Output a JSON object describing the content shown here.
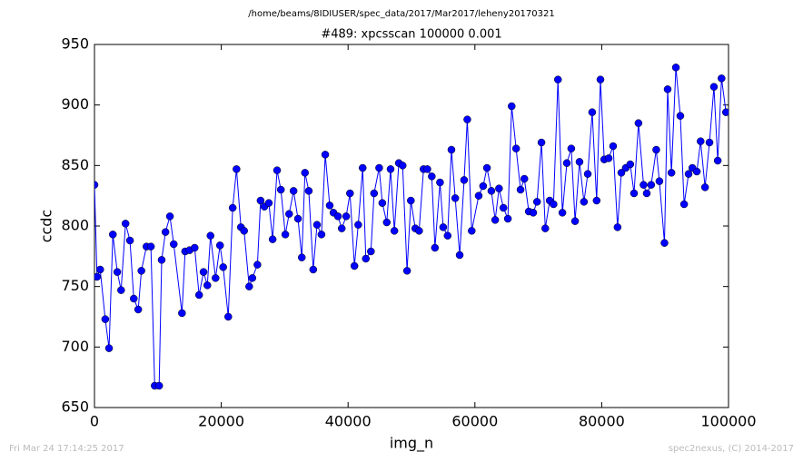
{
  "chart_data": {
    "type": "line",
    "subtitle": "/home/beams/8IDIUSER/spec_data/2017/Mar2017/leheny20170321",
    "title": "#489: xpcsscan 100000 0.001",
    "x_label": "img_n",
    "y_label": "ccdc",
    "footer_left": "Fri Mar 24 17:14:25 2017",
    "footer_right": "spec2nexus, (C) 2014-2017",
    "color": "#0000ff",
    "x": [
      0,
      400,
      900,
      1700,
      2300,
      2900,
      3600,
      4200,
      4900,
      5600,
      6200,
      6900,
      7400,
      8200,
      8900,
      9500,
      10200,
      10600,
      11200,
      11900,
      12500,
      13800,
      14300,
      15000,
      15800,
      16500,
      17200,
      17800,
      18300,
      19100,
      19800,
      20300,
      21100,
      21800,
      22400,
      23100,
      23600,
      24400,
      24900,
      25700,
      26200,
      26800,
      27500,
      28100,
      28800,
      29400,
      30100,
      30700,
      31400,
      32100,
      32700,
      33200,
      33800,
      34500,
      35100,
      35800,
      36400,
      37100,
      37700,
      38400,
      39000,
      39700,
      40300,
      41000,
      41600,
      42300,
      42800,
      43600,
      44100,
      44900,
      45400,
      46100,
      46700,
      47300,
      48000,
      48600,
      49300,
      49900,
      50600,
      51200,
      51900,
      52500,
      53200,
      53700,
      54500,
      55000,
      55700,
      56300,
      56900,
      57600,
      58300,
      58800,
      59500,
      60600,
      61300,
      61900,
      62600,
      63200,
      63800,
      64500,
      65200,
      65800,
      66500,
      67200,
      67800,
      68500,
      69200,
      69800,
      70500,
      71100,
      71800,
      72400,
      73100,
      73800,
      74500,
      75200,
      75800,
      76500,
      77200,
      77800,
      78500,
      79200,
      79800,
      80400,
      81100,
      81800,
      82500,
      83100,
      83800,
      84500,
      85100,
      85800,
      86600,
      87100,
      87800,
      88600,
      89100,
      89900,
      90400,
      91000,
      91700,
      92400,
      93000,
      93700,
      94300,
      95000,
      95600,
      96300,
      97000,
      97700,
      98300,
      98900,
      99600
    ],
    "values": [
      834,
      758,
      764,
      723,
      699,
      793,
      762,
      747,
      802,
      788,
      740,
      731,
      763,
      783,
      783,
      668,
      668,
      772,
      795,
      808,
      785,
      728,
      779,
      780,
      782,
      743,
      762,
      751,
      792,
      757,
      784,
      766,
      725,
      815,
      847,
      799,
      796,
      750,
      757,
      768,
      821,
      816,
      819,
      789,
      846,
      830,
      793,
      810,
      829,
      806,
      774,
      844,
      829,
      764,
      801,
      793,
      859,
      817,
      811,
      808,
      798,
      808,
      827,
      767,
      801,
      848,
      773,
      779,
      827,
      848,
      819,
      803,
      847,
      796,
      852,
      850,
      763,
      821,
      798,
      796,
      847,
      847,
      841,
      782,
      836,
      799,
      792,
      863,
      823,
      776,
      838,
      888,
      796,
      825,
      833,
      848,
      829,
      805,
      831,
      815,
      806,
      899,
      864,
      830,
      839,
      812,
      811,
      820,
      869,
      798,
      821,
      818,
      921,
      811,
      852,
      864,
      804,
      853,
      820,
      843,
      894,
      821,
      921,
      855,
      856,
      866,
      799,
      844,
      848,
      851,
      827,
      885,
      834,
      827,
      834,
      863,
      837,
      786,
      913,
      844,
      931,
      891,
      818,
      843,
      848,
      845,
      870,
      832,
      869,
      915,
      854,
      922,
      894
    ],
    "xlim": [
      0,
      100000
    ],
    "ylim": [
      650,
      950
    ],
    "xticks": [
      0,
      20000,
      40000,
      60000,
      80000,
      100000
    ],
    "yticks": [
      650,
      700,
      750,
      800,
      850,
      900,
      950
    ]
  }
}
